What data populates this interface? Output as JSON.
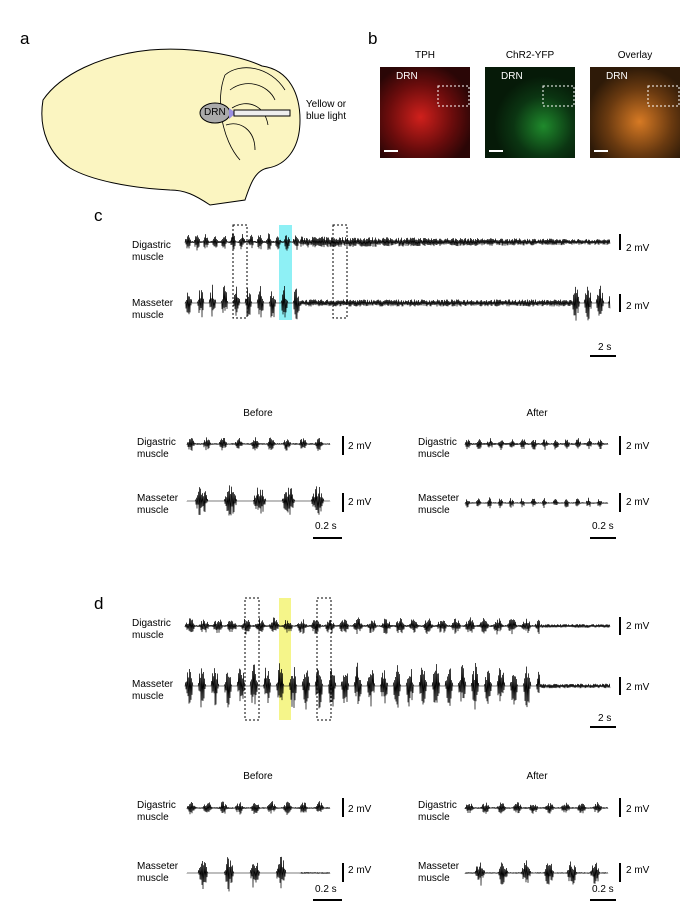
{
  "panel_a": {
    "label": "a",
    "region": "DRN",
    "light": "Yellow or blue light"
  },
  "panel_b": {
    "label": "b",
    "images": [
      {
        "title": "TPH",
        "region": "DRN"
      },
      {
        "title": "ChR2-YFP",
        "region": "DRN"
      },
      {
        "title": "Overlay",
        "region": "DRN"
      }
    ]
  },
  "panel_c": {
    "label": "c",
    "overview": {
      "rows": [
        {
          "muscle": "Digastric muscle",
          "scale": "2 mV"
        },
        {
          "muscle": "Masseter muscle",
          "scale": "2 mV"
        }
      ],
      "time_scale": "2 s"
    },
    "insets": [
      {
        "title": "Before",
        "rows": [
          {
            "muscle": "Digastric muscle",
            "scale": "2 mV"
          },
          {
            "muscle": "Masseter muscle",
            "scale": "2 mV"
          }
        ],
        "time_scale": "0.2 s"
      },
      {
        "title": "After",
        "rows": [
          {
            "muscle": "Digastric muscle",
            "scale": "2 mV"
          },
          {
            "muscle": "Masseter muscle",
            "scale": "2 mV"
          }
        ],
        "time_scale": "0.2 s"
      }
    ]
  },
  "panel_d": {
    "label": "d",
    "overview": {
      "rows": [
        {
          "muscle": "Digastric muscle",
          "scale": "2 mV"
        },
        {
          "muscle": "Masseter muscle",
          "scale": "2 mV"
        }
      ],
      "time_scale": "2 s"
    },
    "insets": [
      {
        "title": "Before",
        "rows": [
          {
            "muscle": "Digastric muscle",
            "scale": "2 mV"
          },
          {
            "muscle": "Masseter muscle",
            "scale": "2 mV"
          }
        ],
        "time_scale": "0.2 s"
      },
      {
        "title": "After",
        "rows": [
          {
            "muscle": "Digastric muscle",
            "scale": "2 mV"
          },
          {
            "muscle": "Masseter muscle",
            "scale": "2 mV"
          }
        ],
        "time_scale": "0.2 s"
      }
    ]
  }
}
